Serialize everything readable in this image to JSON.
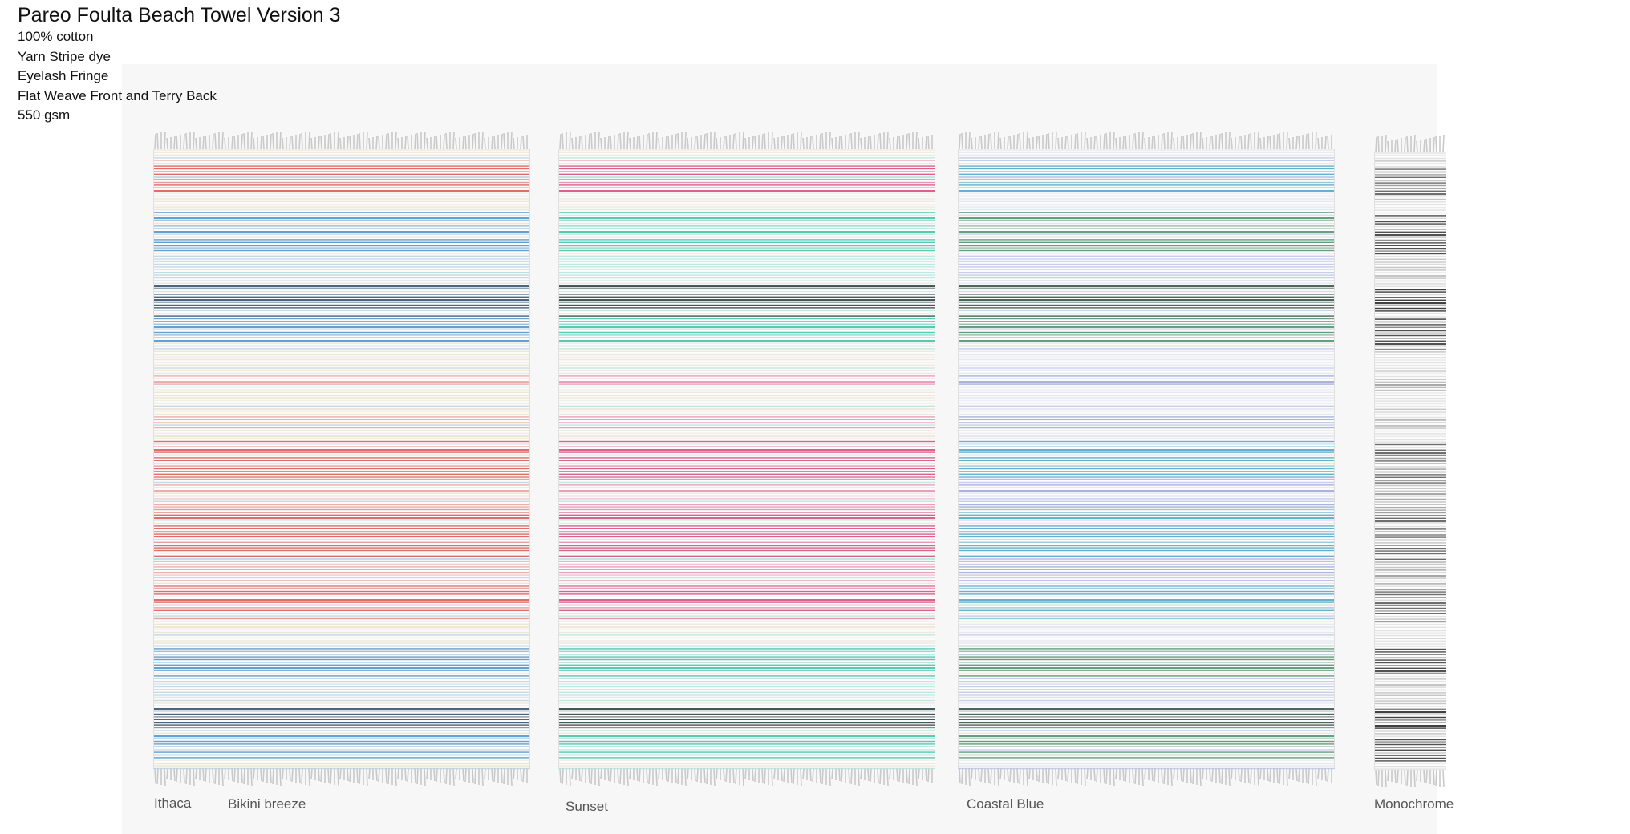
{
  "header": {
    "title": "Pareo Foulta Beach Towel Version 3",
    "specs": [
      "100% cotton",
      "Yarn Stripe dye",
      "Eyelash Fringe",
      "Flat Weave Front and Terry Back",
      "550 gsm"
    ]
  },
  "labels": {
    "ithaca": "Ithaca",
    "bikini_breeze": "Bikini breeze",
    "sunset": "Sunset",
    "coastal_blue": "Coastal Blue",
    "monochrome": "Monochrome"
  },
  "towels": [
    {
      "name": "ithaca-bikini-breeze",
      "colors": {
        "primary": "#d9534f",
        "secondary": "#4a90c8",
        "accent": "#e8a2a0",
        "light": "#eae3cf",
        "dark": "#2c4a66",
        "pale": "#bcd3e2"
      }
    },
    {
      "name": "sunset",
      "colors": {
        "primary": "#d4487a",
        "secondary": "#3dbfa6",
        "accent": "#e58fb0",
        "light": "#ece4d8",
        "dark": "#243b38",
        "pale": "#b4e5da"
      }
    },
    {
      "name": "coastal-blue",
      "colors": {
        "primary": "#4ba3c3",
        "secondary": "#4d8c6a",
        "accent": "#9aa6d8",
        "light": "#e2e4ef",
        "dark": "#2e4a3d",
        "pale": "#bcc6e6"
      }
    },
    {
      "name": "monochrome",
      "colors": {
        "primary": "#555555",
        "secondary": "#333333",
        "accent": "#999999",
        "light": "#dddddd",
        "dark": "#1e1e1e",
        "pale": "#bbbbbb"
      }
    }
  ]
}
